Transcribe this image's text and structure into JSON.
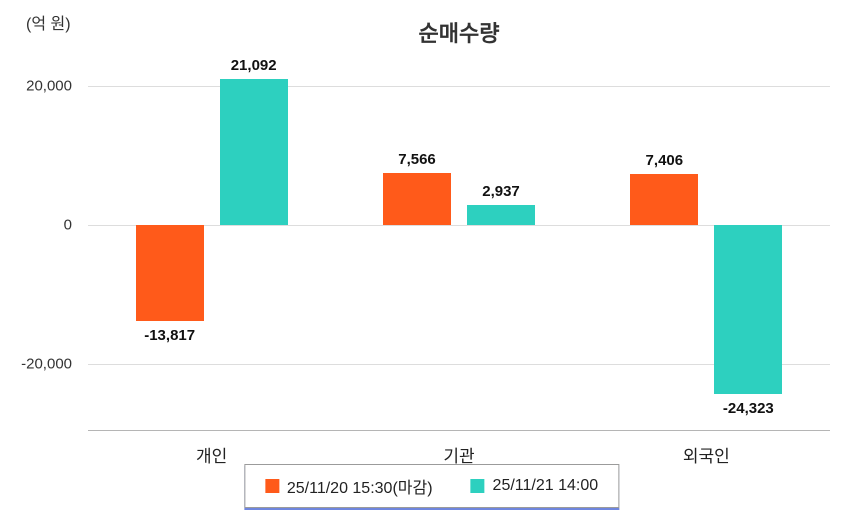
{
  "chart_data": {
    "type": "bar",
    "title": "순매수량",
    "unit_label": "(억 원)",
    "categories": [
      "개인",
      "기관",
      "외국인"
    ],
    "series": [
      {
        "name": "25/11/20 15:30(마감)",
        "color": "#ff5a1a",
        "values": [
          -13817,
          7566,
          7406
        ],
        "labels": [
          "-13,817",
          "7,566",
          "7,406"
        ]
      },
      {
        "name": "25/11/21 14:00",
        "color": "#2dd0bf",
        "values": [
          21092,
          2937,
          -24323
        ],
        "labels": [
          "21,092",
          "2,937",
          "-24,323"
        ]
      }
    ],
    "yticks": [
      {
        "value": 20000,
        "label": "20,000"
      },
      {
        "value": 0,
        "label": "0"
      },
      {
        "value": -20000,
        "label": "-20,000"
      }
    ],
    "ylim": [
      -29500,
      24500
    ],
    "grid": true,
    "legend_position": "bottom-center",
    "colors": {
      "axis": "#b5b5b5",
      "grid": "#dddddd"
    }
  }
}
